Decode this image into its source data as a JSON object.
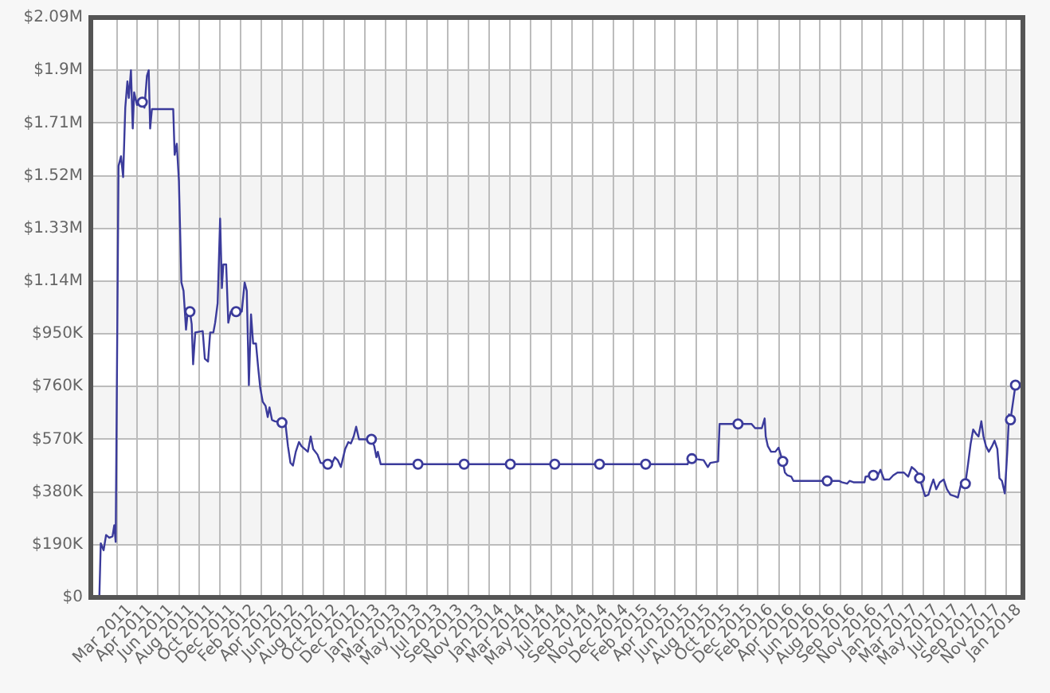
{
  "chart_data": {
    "type": "line",
    "x": [
      "2011-01-13",
      "2011-01-17",
      "2011-01-25",
      "2011-02-01",
      "2011-02-10",
      "2011-02-19",
      "2011-02-24",
      "2011-02-28",
      "2011-03-08",
      "2011-03-15",
      "2011-03-21",
      "2011-03-27",
      "2011-04-02",
      "2011-04-06",
      "2011-04-12",
      "2011-04-17",
      "2011-04-21",
      "2011-04-29",
      "2011-05-05",
      "2011-05-14",
      "2011-05-20",
      "2011-05-27",
      "2011-06-01",
      "2011-06-05",
      "2011-06-10",
      "2011-08-09",
      "2011-08-13",
      "2011-08-19",
      "2011-08-25",
      "2011-09-01",
      "2011-09-07",
      "2011-09-14",
      "2011-09-19",
      "2011-09-25",
      "2011-09-30",
      "2011-10-04",
      "2011-10-10",
      "2011-10-31",
      "2011-11-06",
      "2011-11-15",
      "2011-11-21",
      "2011-11-30",
      "2011-12-05",
      "2011-12-12",
      "2011-12-19",
      "2011-12-24",
      "2011-12-28",
      "2012-01-05",
      "2012-01-11",
      "2012-01-18",
      "2012-02-02",
      "2012-02-18",
      "2012-02-26",
      "2012-03-03",
      "2012-03-09",
      "2012-03-15",
      "2012-03-21",
      "2012-03-29",
      "2012-04-04",
      "2012-04-10",
      "2012-04-17",
      "2012-04-25",
      "2012-05-01",
      "2012-05-06",
      "2012-05-13",
      "2012-05-21",
      "2012-06-10",
      "2012-06-20",
      "2012-06-27",
      "2012-07-04",
      "2012-07-11",
      "2012-07-19",
      "2012-07-28",
      "2012-08-04",
      "2012-08-22",
      "2012-08-30",
      "2012-09-06",
      "2012-09-18",
      "2012-09-27",
      "2012-10-17",
      "2012-10-28",
      "2012-11-06",
      "2012-11-14",
      "2012-11-23",
      "2012-12-05",
      "2012-12-14",
      "2012-12-21",
      "2012-12-29",
      "2013-01-05",
      "2013-01-13",
      "2013-01-23",
      "2013-02-17",
      "2013-02-25",
      "2013-03-03",
      "2013-03-07",
      "2013-03-15",
      "2013-06-28",
      "2013-11-05",
      "2014-03-15",
      "2014-07-18",
      "2014-11-21",
      "2015-03-31",
      "2015-07-27",
      "2015-08-01",
      "2015-08-08",
      "2015-09-10",
      "2015-09-22",
      "2015-09-29",
      "2015-10-21",
      "2015-10-25",
      "2015-12-16",
      "2016-01-23",
      "2016-02-02",
      "2016-02-21",
      "2016-02-29",
      "2016-03-03",
      "2016-03-09",
      "2016-03-18",
      "2016-03-30",
      "2016-04-08",
      "2016-04-14",
      "2016-04-20",
      "2016-04-26",
      "2016-05-03",
      "2016-05-14",
      "2016-05-20",
      "2016-08-23",
      "2016-09-25",
      "2016-10-03",
      "2016-10-18",
      "2016-10-25",
      "2016-11-05",
      "2016-12-06",
      "2016-12-09",
      "2016-12-31",
      "2017-01-11",
      "2017-01-20",
      "2017-01-30",
      "2017-02-14",
      "2017-02-25",
      "2017-03-09",
      "2017-03-27",
      "2017-04-08",
      "2017-04-18",
      "2017-04-27",
      "2017-05-04",
      "2017-05-10",
      "2017-05-22",
      "2017-05-26",
      "2017-06-04",
      "2017-06-11",
      "2017-06-18",
      "2017-06-26",
      "2017-07-06",
      "2017-07-17",
      "2017-07-26",
      "2017-08-05",
      "2017-08-17",
      "2017-08-26",
      "2017-09-04",
      "2017-09-16",
      "2017-09-24",
      "2017-10-01",
      "2017-10-08",
      "2017-10-16",
      "2017-10-23",
      "2017-10-31",
      "2017-11-06",
      "2017-11-13",
      "2017-11-21",
      "2017-11-30",
      "2017-12-07",
      "2017-12-15",
      "2017-12-21",
      "2017-12-28",
      "2018-01-05",
      "2018-01-12",
      "2018-01-17",
      "2018-01-21",
      "2018-02-04"
    ],
    "series": [
      {
        "color": "#3b3b9b",
        "values": [
          0,
          195000,
          170000,
          225000,
          215000,
          220000,
          260000,
          200000,
          1555000,
          1590000,
          1515000,
          1765000,
          1860000,
          1800000,
          1900000,
          1690000,
          1820000,
          1775000,
          1785000,
          1785000,
          1765000,
          1880000,
          1900000,
          1690000,
          1760000,
          1760000,
          1595000,
          1635000,
          1500000,
          1135000,
          1105000,
          965000,
          1030000,
          1030000,
          985000,
          840000,
          955000,
          960000,
          860000,
          850000,
          955000,
          955000,
          990000,
          1060000,
          1365000,
          1115000,
          1200000,
          1200000,
          990000,
          1030000,
          1030000,
          1030000,
          1135000,
          1105000,
          765000,
          1020000,
          915000,
          915000,
          830000,
          755000,
          705000,
          690000,
          650000,
          685000,
          640000,
          635000,
          630000,
          625000,
          545000,
          485000,
          475000,
          525000,
          560000,
          545000,
          525000,
          580000,
          535000,
          515000,
          485000,
          480000,
          480000,
          505000,
          495000,
          470000,
          535000,
          560000,
          555000,
          580000,
          615000,
          570000,
          570000,
          570000,
          545000,
          505000,
          525000,
          480000,
          480000,
          480000,
          480000,
          480000,
          480000,
          480000,
          480000,
          500000,
          500000,
          495000,
          470000,
          485000,
          490000,
          625000,
          625000,
          625000,
          610000,
          610000,
          645000,
          580000,
          545000,
          525000,
          525000,
          540000,
          515000,
          490000,
          450000,
          440000,
          435000,
          420000,
          420000,
          420000,
          415000,
          410000,
          420000,
          415000,
          415000,
          435000,
          440000,
          435000,
          460000,
          425000,
          425000,
          440000,
          450000,
          450000,
          435000,
          470000,
          460000,
          450000,
          430000,
          380000,
          365000,
          370000,
          400000,
          425000,
          390000,
          415000,
          425000,
          390000,
          370000,
          365000,
          360000,
          410000,
          410000,
          485000,
          555000,
          605000,
          590000,
          580000,
          635000,
          580000,
          545000,
          525000,
          545000,
          565000,
          535000,
          430000,
          420000,
          375000,
          525000,
          660000,
          640000,
          765000
        ]
      },
      {
        "type": "scatter",
        "marker": "circle",
        "color": "#3b3b9b",
        "x": [
          "2011-05-14",
          "2011-09-25",
          "2012-02-02",
          "2012-06-10",
          "2012-10-17",
          "2013-02-17",
          "2013-06-28",
          "2013-11-05",
          "2014-03-15",
          "2014-07-18",
          "2014-11-21",
          "2015-03-31",
          "2015-08-08",
          "2015-12-16",
          "2016-04-20",
          "2016-08-23",
          "2016-12-31",
          "2017-05-10",
          "2017-09-16",
          "2018-01-21",
          "2018-02-04"
        ],
        "values": [
          1785000,
          1030000,
          1030000,
          630000,
          480000,
          570000,
          480000,
          480000,
          480000,
          480000,
          480000,
          480000,
          500000,
          625000,
          490000,
          420000,
          440000,
          430000,
          410000,
          640000,
          765000
        ]
      }
    ],
    "xlim": [
      "2010-12-20",
      "2018-02-25"
    ],
    "xticks": [
      {
        "value": "2011-03-03",
        "label": "Mar 2011"
      },
      {
        "value": "2011-04-30",
        "label": "Apr 2011"
      },
      {
        "value": "2011-06-27",
        "label": "Jun 2011"
      },
      {
        "value": "2011-08-25",
        "label": "Aug 2011"
      },
      {
        "value": "2011-10-22",
        "label": "Oct 2011"
      },
      {
        "value": "2011-12-19",
        "label": "Dec 2011"
      },
      {
        "value": "2012-02-15",
        "label": "Feb 2012"
      },
      {
        "value": "2012-04-14",
        "label": "Apr 2012"
      },
      {
        "value": "2012-06-11",
        "label": "Jun 2012"
      },
      {
        "value": "2012-08-08",
        "label": "Aug 2012"
      },
      {
        "value": "2012-10-05",
        "label": "Oct 2012"
      },
      {
        "value": "2012-12-03",
        "label": "Dec 2012"
      },
      {
        "value": "2013-01-30",
        "label": "Jan 2013"
      },
      {
        "value": "2013-03-29",
        "label": "Mar 2013"
      },
      {
        "value": "2013-05-26",
        "label": "May 2013"
      },
      {
        "value": "2013-07-24",
        "label": "Jul 2013"
      },
      {
        "value": "2013-09-20",
        "label": "Sep 2013"
      },
      {
        "value": "2013-11-17",
        "label": "Nov 2013"
      },
      {
        "value": "2014-01-14",
        "label": "Jan 2014"
      },
      {
        "value": "2014-03-14",
        "label": "Mar 2014"
      },
      {
        "value": "2014-05-11",
        "label": "May 2014"
      },
      {
        "value": "2014-07-08",
        "label": "Jul 2014"
      },
      {
        "value": "2014-09-04",
        "label": "Sep 2014"
      },
      {
        "value": "2014-11-02",
        "label": "Nov 2014"
      },
      {
        "value": "2014-12-30",
        "label": "Dec 2014"
      },
      {
        "value": "2015-02-25",
        "label": "Feb 2015"
      },
      {
        "value": "2015-04-25",
        "label": "Apr 2015"
      },
      {
        "value": "2015-06-22",
        "label": "Jun 2015"
      },
      {
        "value": "2015-08-20",
        "label": "Aug 2015"
      },
      {
        "value": "2015-10-17",
        "label": "Oct 2015"
      },
      {
        "value": "2015-12-14",
        "label": "Dec 2015"
      },
      {
        "value": "2016-02-10",
        "label": "Feb 2016"
      },
      {
        "value": "2016-04-09",
        "label": "Apr 2016"
      },
      {
        "value": "2016-06-06",
        "label": "Jun 2016"
      },
      {
        "value": "2016-08-03",
        "label": "Aug 2016"
      },
      {
        "value": "2016-09-30",
        "label": "Sep 2016"
      },
      {
        "value": "2016-11-28",
        "label": "Nov 2016"
      },
      {
        "value": "2017-01-25",
        "label": "Jan 2017"
      },
      {
        "value": "2017-03-24",
        "label": "Mar 2017"
      },
      {
        "value": "2017-05-21",
        "label": "May 2017"
      },
      {
        "value": "2017-07-19",
        "label": "Jul 2017"
      },
      {
        "value": "2017-09-15",
        "label": "Sep 2017"
      },
      {
        "value": "2017-11-12",
        "label": "Nov 2017"
      },
      {
        "value": "2018-01-09",
        "label": "Jan 2018"
      }
    ],
    "ylim": [
      0,
      2090000
    ],
    "yticks": [
      {
        "value": 0,
        "label": "$0"
      },
      {
        "value": 190000,
        "label": "$190K"
      },
      {
        "value": 380000,
        "label": "$380K"
      },
      {
        "value": 570000,
        "label": "$570K"
      },
      {
        "value": 760000,
        "label": "$760K"
      },
      {
        "value": 950000,
        "label": "$950K"
      },
      {
        "value": 1140000,
        "label": "$1.14M"
      },
      {
        "value": 1330000,
        "label": "$1.33M"
      },
      {
        "value": 1520000,
        "label": "$1.52M"
      },
      {
        "value": 1710000,
        "label": "$1.71M"
      },
      {
        "value": 1900000,
        "label": "$1.9M"
      },
      {
        "value": 2090000,
        "label": "$2.09M"
      }
    ],
    "grid": true
  }
}
